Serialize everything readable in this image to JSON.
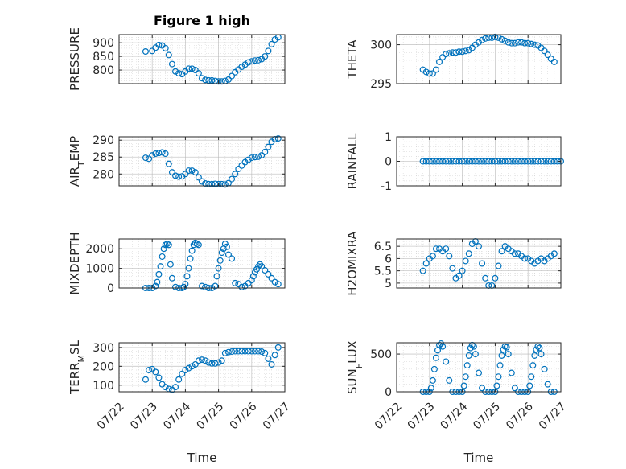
{
  "figure_title": "Figure 1 high",
  "colors": {
    "marker": "#0072BD",
    "axes": "#262626",
    "grid": "#b4b4b4",
    "background": "#ffffff"
  },
  "chart_data": [
    {
      "type": "scatter",
      "marker": "o",
      "grid": "on",
      "title": "Figure 1 high",
      "ylabel": "PRESSURE",
      "xlabel": "",
      "xlim": [
        "07/22",
        "07/27"
      ],
      "ylim": [
        750,
        930
      ],
      "xticks": [],
      "yticks": [
        800,
        850,
        900
      ],
      "x": [
        22.8,
        23.0,
        23.1,
        23.2,
        23.3,
        23.4,
        23.5,
        23.6,
        23.7,
        23.8,
        23.9,
        24.0,
        24.1,
        24.2,
        24.3,
        24.4,
        24.5,
        24.6,
        24.7,
        24.8,
        24.9,
        25.0,
        25.1,
        25.2,
        25.3,
        25.4,
        25.5,
        25.6,
        25.7,
        25.8,
        25.9,
        26.0,
        26.1,
        26.2,
        26.3,
        26.4,
        26.5,
        26.6,
        26.7,
        26.8
      ],
      "y": [
        868,
        870,
        882,
        892,
        890,
        880,
        855,
        822,
        795,
        788,
        785,
        795,
        805,
        805,
        800,
        788,
        770,
        764,
        762,
        762,
        760,
        758,
        758,
        760,
        765,
        778,
        792,
        802,
        812,
        820,
        828,
        832,
        835,
        836,
        840,
        850,
        870,
        895,
        912,
        920
      ]
    },
    {
      "type": "scatter",
      "marker": "o",
      "grid": "on",
      "ylabel": "THETA",
      "xlabel": "",
      "xlim": [
        "07/22",
        "07/27"
      ],
      "ylim": [
        295,
        301.3
      ],
      "xticks": [],
      "yticks": [
        295,
        300
      ],
      "x": [
        22.8,
        22.9,
        23.0,
        23.1,
        23.2,
        23.3,
        23.4,
        23.5,
        23.6,
        23.7,
        23.8,
        23.9,
        24.0,
        24.1,
        24.2,
        24.3,
        24.4,
        24.5,
        24.6,
        24.7,
        24.8,
        24.9,
        25.0,
        25.1,
        25.2,
        25.3,
        25.4,
        25.5,
        25.6,
        25.7,
        25.8,
        25.9,
        26.0,
        26.1,
        26.2,
        26.3,
        26.4,
        26.5,
        26.6,
        26.7,
        26.8
      ],
      "y": [
        296.8,
        296.5,
        296.3,
        296.3,
        296.8,
        297.8,
        298.4,
        298.8,
        298.9,
        299.0,
        299.0,
        299.1,
        299.1,
        299.2,
        299.3,
        299.6,
        300.0,
        300.3,
        300.6,
        300.8,
        300.9,
        300.9,
        301.0,
        300.9,
        300.7,
        300.5,
        300.3,
        300.2,
        300.2,
        300.3,
        300.3,
        300.2,
        300.2,
        300.1,
        300.0,
        299.9,
        299.6,
        299.2,
        298.7,
        298.2,
        297.8
      ]
    },
    {
      "type": "scatter",
      "marker": "o",
      "grid": "on",
      "ylabel": "AIR_TEMP",
      "xlabel": "",
      "xlim": [
        "07/22",
        "07/27"
      ],
      "ylim": [
        276.5,
        291
      ],
      "xticks": [],
      "yticks": [
        280,
        285,
        290
      ],
      "x": [
        22.8,
        22.9,
        23.0,
        23.1,
        23.2,
        23.3,
        23.4,
        23.5,
        23.6,
        23.7,
        23.8,
        23.9,
        24.0,
        24.1,
        24.2,
        24.3,
        24.4,
        24.5,
        24.6,
        24.7,
        24.8,
        24.9,
        25.0,
        25.1,
        25.2,
        25.3,
        25.4,
        25.5,
        25.6,
        25.7,
        25.8,
        25.9,
        26.0,
        26.1,
        26.2,
        26.3,
        26.4,
        26.5,
        26.6,
        26.7,
        26.8
      ],
      "y": [
        284.8,
        284.5,
        285.5,
        286.0,
        286.2,
        286.4,
        286.0,
        283.0,
        280.5,
        279.5,
        279.2,
        279.3,
        280.0,
        281.0,
        281.0,
        280.5,
        279.0,
        277.8,
        277.2,
        277.0,
        277.0,
        277.1,
        277.0,
        277.0,
        276.9,
        277.3,
        278.5,
        280.0,
        281.5,
        282.5,
        283.5,
        284.2,
        284.8,
        285.0,
        285.1,
        285.5,
        286.5,
        288.0,
        289.5,
        290.3,
        290.5
      ]
    },
    {
      "type": "scatter",
      "marker": "o",
      "grid": "on",
      "ylabel": "RAINFALL",
      "xlabel": "",
      "xlim": [
        "07/22",
        "07/27"
      ],
      "ylim": [
        -1,
        1
      ],
      "xticks": [],
      "yticks": [
        -1,
        0,
        1
      ],
      "x": [
        22.8,
        22.9,
        23.0,
        23.1,
        23.2,
        23.3,
        23.4,
        23.5,
        23.6,
        23.7,
        23.8,
        23.9,
        24.0,
        24.1,
        24.2,
        24.3,
        24.4,
        24.5,
        24.6,
        24.7,
        24.8,
        24.9,
        25.0,
        25.1,
        25.2,
        25.3,
        25.4,
        25.5,
        25.6,
        25.7,
        25.8,
        25.9,
        26.0,
        26.1,
        26.2,
        26.3,
        26.4,
        26.5,
        26.6,
        26.7,
        26.8,
        26.9,
        27.0
      ],
      "y": [
        0,
        0,
        0,
        0,
        0,
        0,
        0,
        0,
        0,
        0,
        0,
        0,
        0,
        0,
        0,
        0,
        0,
        0,
        0,
        0,
        0,
        0,
        0,
        0,
        0,
        0,
        0,
        0,
        0,
        0,
        0,
        0,
        0,
        0,
        0,
        0,
        0,
        0,
        0,
        0,
        0,
        0,
        0
      ]
    },
    {
      "type": "scatter",
      "marker": "o",
      "grid": "on",
      "ylabel": "MIXDEPTH",
      "xlabel": "",
      "xlim": [
        "07/22",
        "07/27"
      ],
      "ylim": [
        0,
        2500
      ],
      "xticks": [],
      "yticks": [
        0,
        1000,
        2000
      ],
      "x": [
        22.8,
        22.9,
        23.0,
        23.1,
        23.15,
        23.2,
        23.25,
        23.3,
        23.35,
        23.4,
        23.45,
        23.5,
        23.55,
        23.6,
        23.7,
        23.8,
        23.9,
        23.95,
        24.0,
        24.05,
        24.1,
        24.15,
        24.2,
        24.25,
        24.3,
        24.35,
        24.4,
        24.5,
        24.6,
        24.7,
        24.8,
        24.9,
        24.95,
        25.0,
        25.05,
        25.1,
        25.15,
        25.2,
        25.25,
        25.3,
        25.4,
        25.5,
        25.6,
        25.7,
        25.8,
        25.9,
        26.0,
        26.05,
        26.1,
        26.15,
        26.2,
        26.25,
        26.3,
        26.4,
        26.5,
        26.6,
        26.7,
        26.8
      ],
      "y": [
        0,
        0,
        0,
        100,
        300,
        700,
        1100,
        1600,
        2000,
        2200,
        2250,
        2200,
        1200,
        500,
        50,
        0,
        0,
        50,
        200,
        600,
        1000,
        1500,
        1900,
        2200,
        2300,
        2250,
        2200,
        100,
        50,
        0,
        0,
        100,
        600,
        1000,
        1400,
        1800,
        2000,
        2250,
        2100,
        1700,
        1500,
        250,
        200,
        50,
        100,
        250,
        400,
        600,
        800,
        950,
        1100,
        1200,
        1100,
        900,
        700,
        500,
        300,
        200
      ]
    },
    {
      "type": "scatter",
      "marker": "o",
      "grid": "on",
      "ylabel": "H2OMIXRA",
      "xlabel": "",
      "xlim": [
        "07/22",
        "07/27"
      ],
      "ylim": [
        4.8,
        6.8
      ],
      "xticks": [],
      "yticks": [
        5,
        5.5,
        6,
        6.5
      ],
      "x": [
        22.8,
        22.9,
        23.0,
        23.1,
        23.2,
        23.3,
        23.4,
        23.5,
        23.6,
        23.7,
        23.8,
        23.9,
        24.0,
        24.1,
        24.2,
        24.3,
        24.4,
        24.5,
        24.6,
        24.7,
        24.8,
        24.9,
        25.0,
        25.1,
        25.2,
        25.3,
        25.4,
        25.5,
        25.6,
        25.7,
        25.8,
        25.9,
        26.0,
        26.1,
        26.2,
        26.3,
        26.4,
        26.5,
        26.6,
        26.7,
        26.8
      ],
      "y": [
        5.5,
        5.8,
        6.0,
        6.1,
        6.4,
        6.4,
        6.3,
        6.4,
        6.1,
        5.6,
        5.2,
        5.3,
        5.5,
        5.9,
        6.2,
        6.6,
        6.7,
        6.5,
        5.8,
        5.2,
        4.9,
        4.9,
        5.2,
        5.7,
        6.3,
        6.5,
        6.4,
        6.3,
        6.2,
        6.2,
        6.1,
        6.0,
        6.0,
        5.9,
        5.8,
        5.9,
        6.0,
        5.9,
        6.0,
        6.1,
        6.2
      ]
    },
    {
      "type": "scatter",
      "marker": "o",
      "grid": "on",
      "ylabel": "TERR_MSL",
      "xlabel": "Time",
      "xlim": [
        "07/22",
        "07/27"
      ],
      "ylim": [
        65,
        325
      ],
      "xticks": [
        "07/22",
        "07/23",
        "07/24",
        "07/25",
        "07/26",
        "07/27"
      ],
      "yticks": [
        100,
        200,
        300
      ],
      "x": [
        22.8,
        22.9,
        23.0,
        23.1,
        23.2,
        23.3,
        23.4,
        23.5,
        23.6,
        23.7,
        23.8,
        23.9,
        24.0,
        24.1,
        24.2,
        24.3,
        24.4,
        24.5,
        24.6,
        24.7,
        24.8,
        24.9,
        25.0,
        25.1,
        25.2,
        25.3,
        25.4,
        25.5,
        25.6,
        25.7,
        25.8,
        25.9,
        26.0,
        26.1,
        26.2,
        26.3,
        26.4,
        26.5,
        26.6,
        26.7,
        26.8
      ],
      "y": [
        130,
        180,
        185,
        170,
        140,
        105,
        90,
        80,
        75,
        90,
        130,
        160,
        180,
        190,
        200,
        210,
        230,
        235,
        230,
        220,
        215,
        215,
        220,
        230,
        270,
        275,
        278,
        280,
        280,
        280,
        280,
        280,
        280,
        280,
        280,
        278,
        270,
        240,
        210,
        260,
        300
      ]
    },
    {
      "type": "scatter",
      "marker": "o",
      "grid": "on",
      "ylabel": "SUN_FLUX",
      "xlabel": "Time",
      "xlim": [
        "07/22",
        "07/27"
      ],
      "ylim": [
        0,
        650
      ],
      "xticks": [
        "07/22",
        "07/23",
        "07/24",
        "07/25",
        "07/26",
        "07/27"
      ],
      "yticks": [
        0,
        500
      ],
      "x": [
        22.8,
        22.9,
        23.0,
        23.05,
        23.1,
        23.15,
        23.2,
        23.25,
        23.3,
        23.35,
        23.4,
        23.5,
        23.6,
        23.7,
        23.8,
        23.9,
        24.0,
        24.05,
        24.1,
        24.15,
        24.2,
        24.25,
        24.3,
        24.35,
        24.4,
        24.5,
        24.6,
        24.7,
        24.8,
        24.9,
        25.0,
        25.05,
        25.1,
        25.15,
        25.2,
        25.25,
        25.3,
        25.35,
        25.4,
        25.5,
        25.6,
        25.7,
        25.8,
        25.9,
        26.0,
        26.05,
        26.1,
        26.15,
        26.2,
        26.25,
        26.3,
        26.35,
        26.4,
        26.5,
        26.6,
        26.7,
        26.8
      ],
      "y": [
        0,
        0,
        0,
        50,
        150,
        300,
        450,
        550,
        620,
        640,
        600,
        400,
        150,
        0,
        0,
        0,
        0,
        80,
        200,
        350,
        480,
        580,
        620,
        600,
        500,
        250,
        50,
        0,
        0,
        0,
        0,
        80,
        200,
        350,
        480,
        560,
        600,
        590,
        500,
        250,
        50,
        0,
        0,
        0,
        0,
        80,
        200,
        350,
        480,
        560,
        600,
        580,
        500,
        300,
        100,
        0,
        0
      ]
    }
  ]
}
